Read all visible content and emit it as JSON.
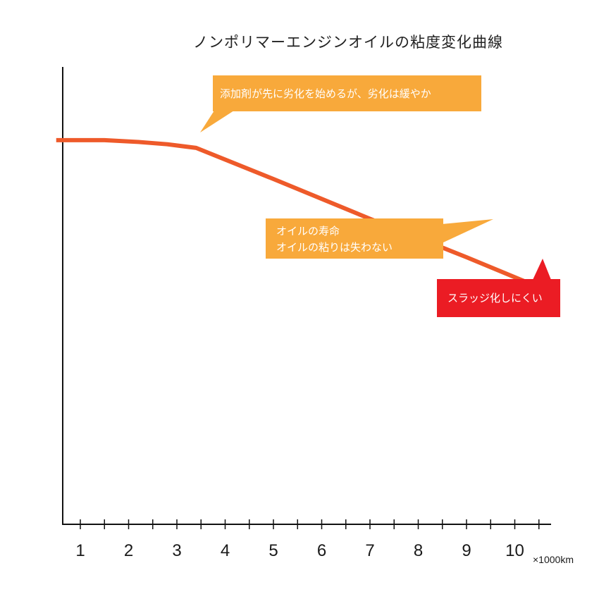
{
  "title": "ノンポリマーエンジンオイルの粘度変化曲線",
  "chart_data": {
    "type": "line",
    "x_ticks": [
      "1",
      "2",
      "3",
      "4",
      "5",
      "6",
      "7",
      "8",
      "9",
      "10"
    ],
    "x_unit": "×1000km",
    "xlim": [
      0.5,
      10.8
    ],
    "ylim": [
      0,
      100
    ],
    "grid": false,
    "series": [
      {
        "x": [
          0.5,
          1.5,
          2.2,
          2.8,
          3.4,
          5.0,
          7.0,
          9.0,
          10.6
        ],
        "y": [
          84,
          84,
          83.6,
          83.1,
          82.3,
          75.5,
          66.8,
          58.4,
          51.4
        ],
        "color": "#ee5a2a"
      }
    ],
    "annotations": [
      {
        "lines": [
          "添加剤が先に劣化を始めるが、劣化は緩やか"
        ],
        "color": "#f8a93b"
      },
      {
        "lines": [
          "オイルの寿命",
          "オイルの粘りは失わない"
        ],
        "color": "#f8a93b"
      },
      {
        "lines": [
          "スラッジ化しにくい"
        ],
        "color": "#eb1c24"
      }
    ]
  }
}
